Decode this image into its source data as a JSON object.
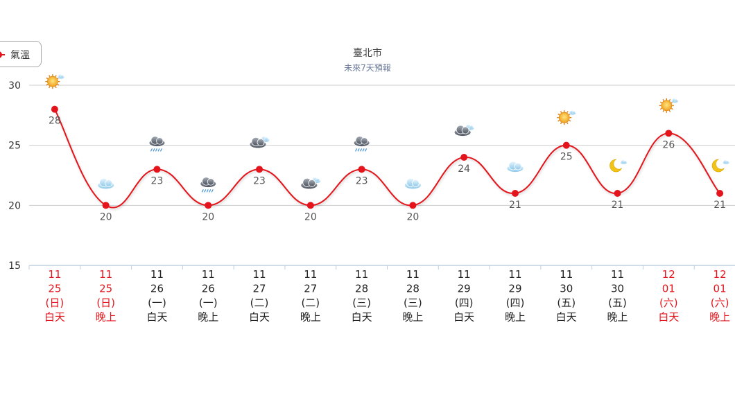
{
  "legend": {
    "label": "氣溫"
  },
  "chart_data": {
    "type": "line",
    "title": "臺北市",
    "subtitle": "未來7天預報",
    "ylim": [
      15,
      30
    ],
    "yticks": [
      15,
      20,
      25,
      30
    ],
    "grid": true,
    "legend_position": "top-left",
    "series": [
      {
        "name": "氣溫",
        "color": "#e3141b",
        "values": [
          28,
          20,
          23,
          20,
          23,
          20,
          23,
          20,
          24,
          21,
          25,
          21,
          26,
          21
        ]
      }
    ],
    "categories": [
      {
        "month": "11",
        "day": "25",
        "weekday": "(日)",
        "period": "白天",
        "red": true,
        "icon": "sunny-cloud-icon"
      },
      {
        "month": "11",
        "day": "25",
        "weekday": "(日)",
        "period": "晚上",
        "red": true,
        "icon": "cloud-icon"
      },
      {
        "month": "11",
        "day": "26",
        "weekday": "(一)",
        "period": "白天",
        "red": false,
        "icon": "rain-cloud-icon"
      },
      {
        "month": "11",
        "day": "26",
        "weekday": "(一)",
        "period": "晚上",
        "red": false,
        "icon": "rain-cloud-icon"
      },
      {
        "month": "11",
        "day": "27",
        "weekday": "(二)",
        "period": "白天",
        "red": false,
        "icon": "dark-cloud-icon"
      },
      {
        "month": "11",
        "day": "27",
        "weekday": "(二)",
        "period": "晚上",
        "red": false,
        "icon": "dark-cloud-icon"
      },
      {
        "month": "11",
        "day": "28",
        "weekday": "(三)",
        "period": "白天",
        "red": false,
        "icon": "rain-cloud-icon"
      },
      {
        "month": "11",
        "day": "28",
        "weekday": "(三)",
        "period": "晚上",
        "red": false,
        "icon": "cloud-icon"
      },
      {
        "month": "11",
        "day": "29",
        "weekday": "(四)",
        "period": "白天",
        "red": false,
        "icon": "dark-cloud-icon"
      },
      {
        "month": "11",
        "day": "29",
        "weekday": "(四)",
        "period": "晚上",
        "red": false,
        "icon": "cloud-icon"
      },
      {
        "month": "11",
        "day": "30",
        "weekday": "(五)",
        "period": "白天",
        "red": false,
        "icon": "sunny-cloud-icon"
      },
      {
        "month": "11",
        "day": "30",
        "weekday": "(五)",
        "period": "晚上",
        "red": false,
        "icon": "moon-cloud-icon"
      },
      {
        "month": "12",
        "day": "01",
        "weekday": "(六)",
        "period": "白天",
        "red": true,
        "icon": "sunny-cloud-icon"
      },
      {
        "month": "12",
        "day": "01",
        "weekday": "(六)",
        "period": "晚上",
        "red": true,
        "icon": "moon-cloud-icon"
      }
    ],
    "colors": {
      "line": "#e3141b",
      "grid": "#cccccc",
      "axis": "#c0d0e0",
      "holiday_text": "#e3141b",
      "text": "#222222"
    }
  }
}
